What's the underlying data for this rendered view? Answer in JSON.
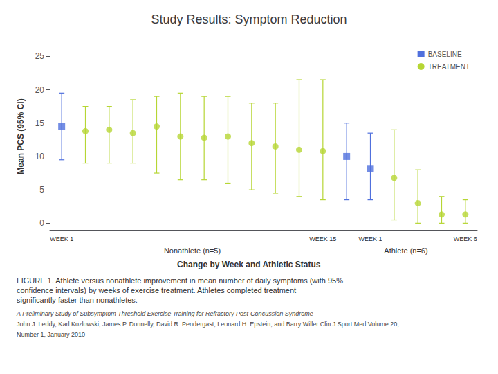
{
  "chart_data": {
    "type": "scatter",
    "title": "Study Results: Symptom Reduction",
    "xlabel": "Change by Week and Athletic Status",
    "ylabel": "Mean PCS (95% CI)",
    "ylim": [
      -1,
      27
    ],
    "yticks": [
      0,
      5,
      10,
      15,
      20,
      25
    ],
    "grid": false,
    "legend": "upper right",
    "series": [
      {
        "name": "BASELINE",
        "marker": "square"
      },
      {
        "name": "TREATMENT",
        "marker": "circle"
      }
    ],
    "groups": [
      {
        "name": "Nonathlete (n=5)",
        "categories": [
          "WEEK 1",
          null,
          null,
          null,
          null,
          null,
          null,
          null,
          null,
          null,
          null,
          "WEEK 15"
        ],
        "series": [
          {
            "name": "BASELINE",
            "values": [
              14.5,
              null,
              null,
              null,
              null,
              null,
              null,
              null,
              null,
              null,
              null,
              null
            ],
            "ci_low": [
              9.5,
              null,
              null,
              null,
              null,
              null,
              null,
              null,
              null,
              null,
              null,
              null
            ],
            "ci_high": [
              19.5,
              null,
              null,
              null,
              null,
              null,
              null,
              null,
              null,
              null,
              null,
              null
            ]
          },
          {
            "name": "TREATMENT",
            "values": [
              null,
              13.8,
              14.0,
              13.5,
              14.5,
              13.0,
              12.8,
              13.0,
              12.0,
              11.5,
              11.0,
              10.8
            ],
            "ci_low": [
              null,
              9.0,
              9.0,
              9.0,
              7.5,
              6.5,
              6.5,
              6.0,
              5.0,
              4.5,
              4.0,
              3.5
            ],
            "ci_high": [
              null,
              17.5,
              17.5,
              18.5,
              19.0,
              19.5,
              19.0,
              19.0,
              18.0,
              18.0,
              21.5,
              21.5
            ]
          }
        ]
      },
      {
        "name": "Athlete (n=6)",
        "categories": [
          null,
          "WEEK 1",
          null,
          null,
          null,
          "WEEK 6"
        ],
        "series": [
          {
            "name": "BASELINE",
            "values": [
              10.0,
              8.2,
              null,
              null,
              null,
              null
            ],
            "ci_low": [
              3.5,
              3.5,
              null,
              null,
              null,
              null
            ],
            "ci_high": [
              15.0,
              13.5,
              null,
              null,
              null,
              null
            ]
          },
          {
            "name": "TREATMENT",
            "values": [
              null,
              null,
              6.8,
              3.0,
              1.3,
              1.3
            ],
            "ci_low": [
              null,
              null,
              0.5,
              0.0,
              0.0,
              0.0
            ],
            "ci_high": [
              null,
              null,
              14.0,
              8.0,
              4.0,
              3.5
            ]
          }
        ]
      }
    ],
    "caption": "FIGURE 1. Athlete versus nonathlete improvement in mean number of daily symptoms (with 95%\nconfidence intervals) by weeks of exercise treatment. Athletes completed treatment\nsignificantly faster than nonathletes.",
    "citations": [
      "A Preliminary Study of Subsymptom Threshold Exercise Training for Refractory Post-Concussion Syndrome",
      "John J. Leddy, Karl Kozlowski, James P. Donnelly, David R. Pendergast, Leonard H. Epstein, and Barry Willer Clin J Sport Med Volume 20,",
      "Number 1, January 2010"
    ]
  }
}
